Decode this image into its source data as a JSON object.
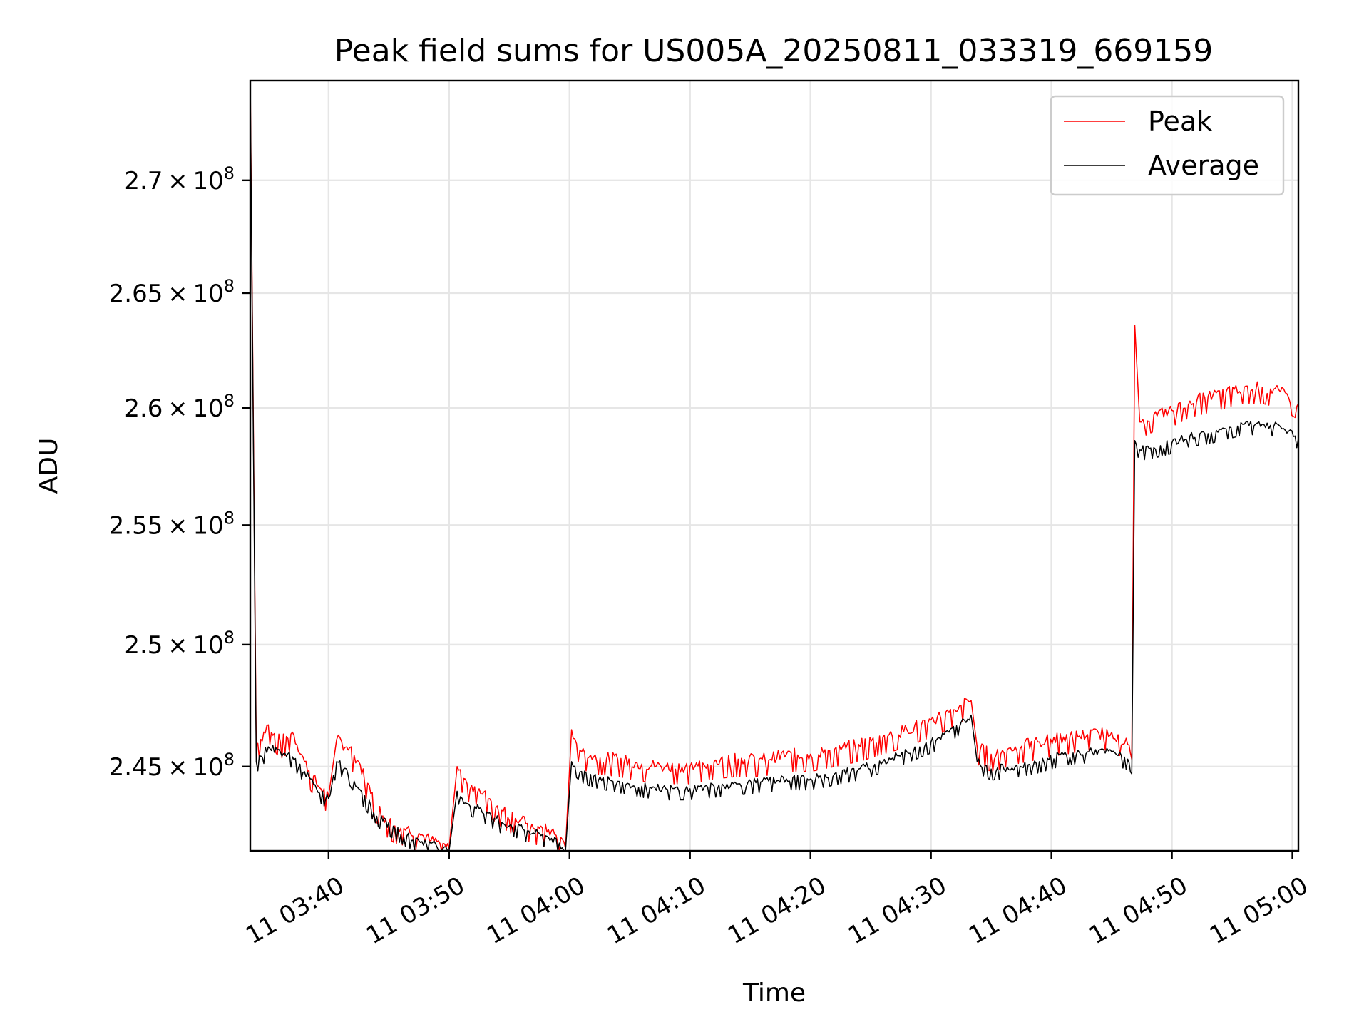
{
  "chart_data": {
    "type": "line",
    "title": "Peak field sums for US005A_20250811_033319_669159",
    "xlabel": "Time",
    "ylabel": "ADU",
    "x_ticks": [
      "11 03:40",
      "11 03:50",
      "11 04:00",
      "11 04:10",
      "11 04:20",
      "11 04:30",
      "11 04:40",
      "11 04:50",
      "11 05:00"
    ],
    "y_ticks": [
      {
        "value": 245000000,
        "mantissa": "2.45",
        "exponent": "8"
      },
      {
        "value": 250000000,
        "mantissa": "2.5",
        "exponent": "8"
      },
      {
        "value": 255000000,
        "mantissa": "2.55",
        "exponent": "8"
      },
      {
        "value": 260000000,
        "mantissa": "2.6",
        "exponent": "8"
      },
      {
        "value": 265000000,
        "mantissa": "2.65",
        "exponent": "8"
      },
      {
        "value": 270000000,
        "mantissa": "2.7",
        "exponent": "8"
      }
    ],
    "xlim": [
      "03:33:30",
      "05:00:30"
    ],
    "ylim": [
      241600000,
      274500000
    ],
    "y_scale": "log",
    "grid": true,
    "legend": "top-right",
    "series": [
      {
        "name": "Peak",
        "color": "#ff0000",
        "points": [
          [
            "03:33:30",
            274500000
          ],
          [
            "03:34:00",
            245800000
          ],
          [
            "03:35:00",
            246700000
          ],
          [
            "03:36:00",
            246000000
          ],
          [
            "03:37:00",
            246400000
          ],
          [
            "03:38:00",
            245200000
          ],
          [
            "03:39:00",
            244300000
          ],
          [
            "03:40:00",
            243800000
          ],
          [
            "03:40:40",
            246100000
          ],
          [
            "03:41:30",
            245800000
          ],
          [
            "03:42:30",
            245200000
          ],
          [
            "03:43:30",
            243900000
          ],
          [
            "03:44:30",
            243000000
          ],
          [
            "03:45:30",
            242600000
          ],
          [
            "03:46:30",
            242500000
          ],
          [
            "03:47:30",
            242300000
          ],
          [
            "03:48:30",
            242000000
          ],
          [
            "03:49:30",
            241900000
          ],
          [
            "03:50:00",
            241700000
          ],
          [
            "03:50:40",
            245000000
          ],
          [
            "03:51:30",
            244300000
          ],
          [
            "03:52:30",
            244100000
          ],
          [
            "03:53:30",
            243600000
          ],
          [
            "03:54:30",
            243200000
          ],
          [
            "03:55:30",
            242900000
          ],
          [
            "03:56:30",
            242700000
          ],
          [
            "03:57:30",
            242500000
          ],
          [
            "03:58:30",
            242400000
          ],
          [
            "03:59:40",
            241700000
          ],
          [
            "04:00:10",
            246500000
          ],
          [
            "04:01:00",
            245600000
          ],
          [
            "04:02:00",
            245400000
          ],
          [
            "04:04:00",
            245300000
          ],
          [
            "04:06:00",
            245100000
          ],
          [
            "04:08:00",
            245000000
          ],
          [
            "04:10:00",
            245000000
          ],
          [
            "04:12:00",
            245200000
          ],
          [
            "04:14:00",
            245300000
          ],
          [
            "04:16:00",
            245300000
          ],
          [
            "04:18:00",
            245500000
          ],
          [
            "04:20:00",
            245500000
          ],
          [
            "04:22:00",
            245700000
          ],
          [
            "04:24:00",
            245900000
          ],
          [
            "04:26:00",
            246200000
          ],
          [
            "04:28:00",
            246500000
          ],
          [
            "04:30:00",
            246900000
          ],
          [
            "04:31:30",
            247200000
          ],
          [
            "04:32:30",
            247500000
          ],
          [
            "04:33:20",
            247700000
          ],
          [
            "04:33:50",
            245800000
          ],
          [
            "04:35:00",
            245500000
          ],
          [
            "04:37:00",
            245800000
          ],
          [
            "04:39:00",
            246000000
          ],
          [
            "04:41:00",
            246200000
          ],
          [
            "04:43:00",
            246300000
          ],
          [
            "04:45:00",
            246400000
          ],
          [
            "04:46:20",
            245900000
          ],
          [
            "04:46:40",
            245300000
          ],
          [
            "04:46:55",
            263600000
          ],
          [
            "04:47:20",
            259400000
          ],
          [
            "04:48:30",
            259700000
          ],
          [
            "04:50:00",
            259900000
          ],
          [
            "04:51:30",
            260300000
          ],
          [
            "04:53:00",
            260500000
          ],
          [
            "04:54:30",
            260700000
          ],
          [
            "04:56:00",
            260900000
          ],
          [
            "04:57:30",
            260900000
          ],
          [
            "04:59:00",
            260700000
          ],
          [
            "05:00:30",
            260200000
          ]
        ]
      },
      {
        "name": "Average",
        "color": "#000000",
        "points": [
          [
            "03:33:30",
            274000000
          ],
          [
            "03:34:00",
            245200000
          ],
          [
            "03:35:00",
            245800000
          ],
          [
            "03:36:00",
            245600000
          ],
          [
            "03:37:00",
            245400000
          ],
          [
            "03:38:00",
            244800000
          ],
          [
            "03:39:00",
            244100000
          ],
          [
            "03:40:00",
            243700000
          ],
          [
            "03:40:40",
            245200000
          ],
          [
            "03:41:30",
            244900000
          ],
          [
            "03:42:30",
            244100000
          ],
          [
            "03:43:30",
            243400000
          ],
          [
            "03:44:30",
            242800000
          ],
          [
            "03:45:30",
            242500000
          ],
          [
            "03:46:30",
            242200000
          ],
          [
            "03:47:30",
            242000000
          ],
          [
            "03:48:30",
            241900000
          ],
          [
            "03:49:30",
            241700000
          ],
          [
            "03:50:00",
            241600000
          ],
          [
            "03:50:40",
            244000000
          ],
          [
            "03:51:30",
            243500000
          ],
          [
            "03:52:30",
            243300000
          ],
          [
            "03:53:30",
            243000000
          ],
          [
            "03:54:30",
            242700000
          ],
          [
            "03:55:30",
            242600000
          ],
          [
            "03:56:30",
            242400000
          ],
          [
            "03:57:30",
            242300000
          ],
          [
            "03:58:30",
            242100000
          ],
          [
            "03:59:40",
            241600000
          ],
          [
            "04:00:10",
            245200000
          ],
          [
            "04:01:00",
            244800000
          ],
          [
            "04:02:00",
            244600000
          ],
          [
            "04:04:00",
            244400000
          ],
          [
            "04:06:00",
            244200000
          ],
          [
            "04:08:00",
            244100000
          ],
          [
            "04:10:00",
            244100000
          ],
          [
            "04:12:00",
            244200000
          ],
          [
            "04:14:00",
            244300000
          ],
          [
            "04:16:00",
            244400000
          ],
          [
            "04:18:00",
            244500000
          ],
          [
            "04:20:00",
            244500000
          ],
          [
            "04:22:00",
            244700000
          ],
          [
            "04:24:00",
            244900000
          ],
          [
            "04:26:00",
            245200000
          ],
          [
            "04:28:00",
            245600000
          ],
          [
            "04:30:00",
            246000000
          ],
          [
            "04:31:30",
            246400000
          ],
          [
            "04:32:30",
            246800000
          ],
          [
            "04:33:20",
            247100000
          ],
          [
            "04:33:50",
            245200000
          ],
          [
            "04:35:00",
            244900000
          ],
          [
            "04:37:00",
            245000000
          ],
          [
            "04:39:00",
            245200000
          ],
          [
            "04:41:00",
            245500000
          ],
          [
            "04:43:00",
            245600000
          ],
          [
            "04:45:00",
            245600000
          ],
          [
            "04:46:20",
            245300000
          ],
          [
            "04:46:40",
            244700000
          ],
          [
            "04:46:55",
            258600000
          ],
          [
            "04:47:20",
            258200000
          ],
          [
            "04:48:30",
            258300000
          ],
          [
            "04:50:00",
            258500000
          ],
          [
            "04:51:30",
            258800000
          ],
          [
            "04:53:00",
            258900000
          ],
          [
            "04:54:30",
            259100000
          ],
          [
            "04:56:00",
            259300000
          ],
          [
            "04:57:30",
            259300000
          ],
          [
            "04:59:00",
            259200000
          ],
          [
            "05:00:30",
            258700000
          ]
        ]
      }
    ]
  }
}
